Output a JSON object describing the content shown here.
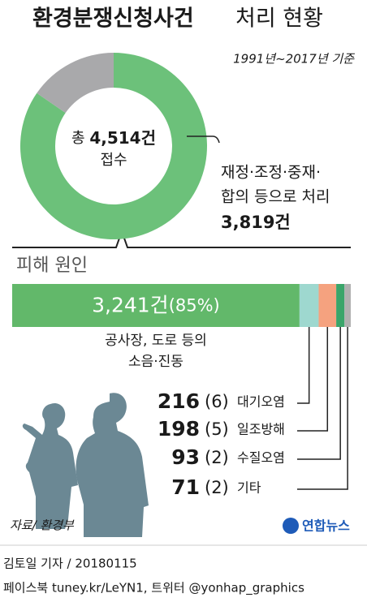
{
  "title_bold": "환경분쟁신청사건",
  "title_light": "처리 현황",
  "subtitle": "1991년~2017년 기준",
  "chart_data": [
    {
      "type": "pie",
      "values": [
        3819,
        695
      ],
      "colors": [
        "#6cc17a",
        "#a9a9ab"
      ],
      "label_lines": [
        "재정·조정·중재·",
        "합의 등으로 처리"
      ],
      "value_labels": [
        "3,819건",
        null
      ],
      "center_prefix": "총",
      "center_total": "4,514건",
      "center_caption": "접수"
    },
    {
      "type": "stacked-bar",
      "title": "피해 원인",
      "categories": [
        "공사장, 도로 등의 소음·진동",
        "대기오염",
        "일조방해",
        "수질오염",
        "기타"
      ],
      "values": [
        3241,
        216,
        198,
        93,
        71
      ],
      "value_labels": [
        "3,241건",
        "216",
        "198",
        "93",
        "71"
      ],
      "percent_labels": [
        "(85%)",
        "(6)",
        "(5)",
        "(2)",
        "(2)"
      ],
      "colors": [
        "#62b86a",
        "#9ed8cf",
        "#f5a27f",
        "#3aa56a",
        "#b0b0b0"
      ]
    }
  ],
  "source": "자료/ 환경부",
  "logo": "연합뉴스",
  "byline": "김토일 기자 / 20180115",
  "social": "페이스북 tuney.kr/LeYN1, 트위터 @yonhap_graphics"
}
